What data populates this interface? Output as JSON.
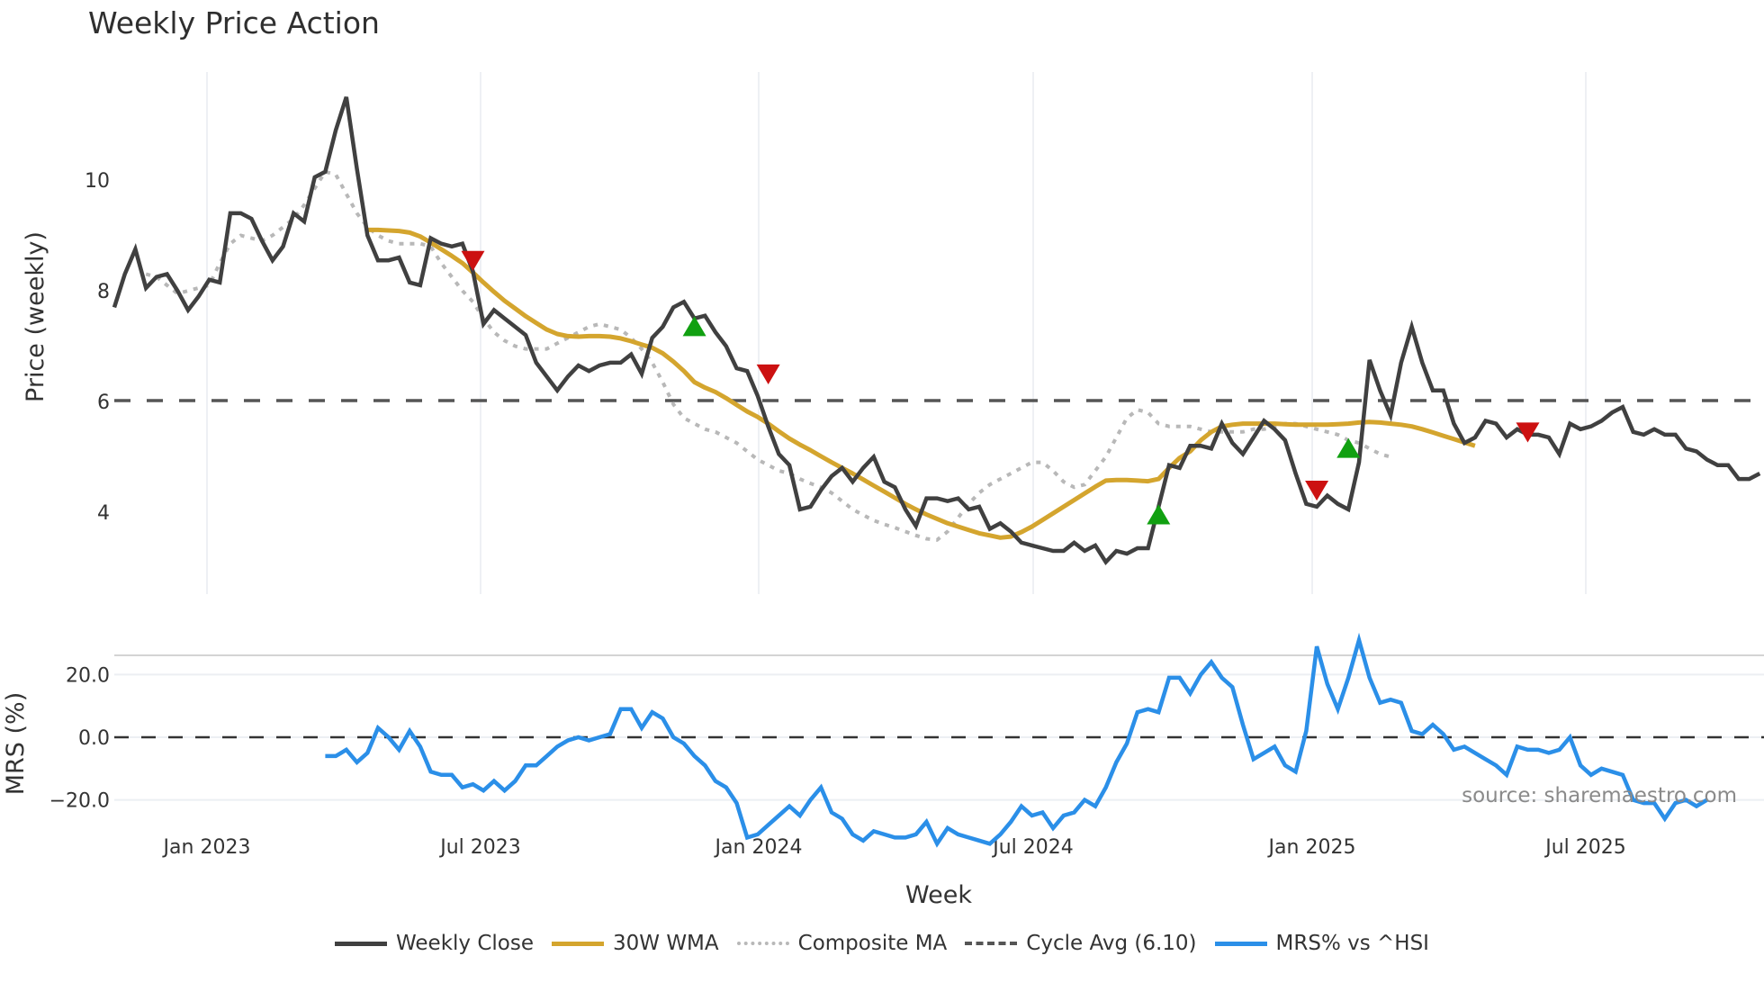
{
  "title": "Weekly Price Action",
  "source_label": "source: sharemaestro.com",
  "legend": [
    {
      "label": "Weekly Close",
      "color": "#404040",
      "style": "solid"
    },
    {
      "label": "30W WMA",
      "color": "#d4a52e",
      "style": "solid"
    },
    {
      "label": "Composite MA",
      "color": "#b8b8b8",
      "style": "dotted"
    },
    {
      "label": "Cycle Avg (6.10)",
      "color": "#555555",
      "style": "dashed"
    },
    {
      "label": "MRS% vs ^HSI",
      "color": "#2b8fe8",
      "style": "solid"
    }
  ],
  "chart_data": [
    {
      "type": "line",
      "title": "Weekly Price Action",
      "xlabel": "Week",
      "ylabel": "Price (weekly)",
      "x_ticks": [
        "Jan 2023",
        "Jul 2023",
        "Jan 2024",
        "Jul 2024",
        "Jan 2025",
        "Jul 2025"
      ],
      "y_ticks": [
        4,
        6,
        8,
        10
      ],
      "ylim": [
        2.6,
        11.8
      ],
      "grid": true,
      "x_start": "Nov 2022",
      "x_end": "Oct 2025",
      "series": [
        {
          "name": "Weekly Close",
          "values": [
            7.7,
            8.3,
            8.75,
            8.05,
            8.25,
            8.3,
            8.0,
            7.65,
            7.9,
            8.2,
            8.15,
            9.4,
            9.4,
            9.3,
            8.9,
            8.55,
            8.8,
            9.4,
            9.25,
            10.05,
            10.15,
            10.9,
            11.5,
            10.2,
            9.0,
            8.55,
            8.55,
            8.6,
            8.15,
            8.1,
            8.95,
            8.85,
            8.8,
            8.85,
            8.35,
            7.4,
            7.65,
            7.5,
            7.35,
            7.2,
            6.7,
            6.45,
            6.2,
            6.45,
            6.65,
            6.55,
            6.65,
            6.7,
            6.7,
            6.85,
            6.5,
            7.15,
            7.35,
            7.7,
            7.8,
            7.5,
            7.55,
            7.25,
            7.0,
            6.6,
            6.55,
            6.1,
            5.55,
            5.05,
            4.85,
            4.05,
            4.1,
            4.4,
            4.65,
            4.8,
            4.55,
            4.8,
            5.0,
            4.55,
            4.45,
            4.05,
            3.75,
            4.25,
            4.25,
            4.2,
            4.25,
            4.05,
            4.1,
            3.7,
            3.8,
            3.65,
            3.45,
            3.4,
            3.35,
            3.3,
            3.3,
            3.45,
            3.3,
            3.4,
            3.1,
            3.3,
            3.25,
            3.35,
            3.35,
            4.1,
            4.85,
            4.8,
            5.2,
            5.2,
            5.15,
            5.6,
            5.25,
            5.05,
            5.35,
            5.65,
            5.5,
            5.3,
            4.7,
            4.15,
            4.1,
            4.3,
            4.15,
            4.05,
            4.9,
            6.75,
            6.2,
            5.75,
            6.7,
            7.35,
            6.7,
            6.2,
            6.2,
            5.6,
            5.25,
            5.35,
            5.65,
            5.6,
            5.35,
            5.5,
            5.4,
            5.4,
            5.35,
            5.05,
            5.6,
            5.5,
            5.55,
            5.65,
            5.8,
            5.9,
            5.45,
            5.4,
            5.5,
            5.4,
            5.4,
            5.15,
            5.1,
            4.95,
            4.85,
            4.85,
            4.6,
            4.6,
            4.7
          ]
        },
        {
          "name": "30W WMA",
          "start_index": 24,
          "values": [
            9.1,
            9.1,
            9.09,
            9.08,
            9.05,
            8.98,
            8.87,
            8.75,
            8.63,
            8.5,
            8.33,
            8.15,
            7.98,
            7.82,
            7.68,
            7.54,
            7.42,
            7.3,
            7.22,
            7.18,
            7.17,
            7.18,
            7.18,
            7.17,
            7.14,
            7.09,
            7.03,
            6.97,
            6.87,
            6.72,
            6.55,
            6.35,
            6.25,
            6.17,
            6.06,
            5.94,
            5.82,
            5.72,
            5.6,
            5.46,
            5.33,
            5.22,
            5.12,
            5.01,
            4.9,
            4.8,
            4.7,
            4.59,
            4.48,
            4.37,
            4.26,
            4.15,
            4.05,
            3.96,
            3.88,
            3.8,
            3.74,
            3.68,
            3.62,
            3.58,
            3.54,
            3.56,
            3.64,
            3.74,
            3.86,
            3.98,
            4.1,
            4.22,
            4.34,
            4.46,
            4.57,
            4.58,
            4.58,
            4.57,
            4.56,
            4.6,
            4.8,
            4.98,
            5.1,
            5.3,
            5.45,
            5.55,
            5.58,
            5.6,
            5.6,
            5.6,
            5.6,
            5.59,
            5.58,
            5.58,
            5.58,
            5.58,
            5.59,
            5.6,
            5.62,
            5.63,
            5.62,
            5.6,
            5.58,
            5.55,
            5.5,
            5.44,
            5.38,
            5.32,
            5.26,
            5.2
          ]
        },
        {
          "name": "Composite MA",
          "start_index": 3,
          "values": [
            8.3,
            8.25,
            8.1,
            7.95,
            8.0,
            8.05,
            8.1,
            8.5,
            8.85,
            9.0,
            8.95,
            8.9,
            9.0,
            9.15,
            9.3,
            9.55,
            9.85,
            10.15,
            10.1,
            9.75,
            9.4,
            9.15,
            9.0,
            8.9,
            8.85,
            8.85,
            8.85,
            8.8,
            8.5,
            8.25,
            8.0,
            7.8,
            7.5,
            7.25,
            7.1,
            7.0,
            6.95,
            6.95,
            6.95,
            7.05,
            7.15,
            7.25,
            7.35,
            7.4,
            7.35,
            7.3,
            7.15,
            6.95,
            6.7,
            6.35,
            5.95,
            5.7,
            5.6,
            5.5,
            5.45,
            5.35,
            5.25,
            5.1,
            4.95,
            4.85,
            4.75,
            4.7,
            4.6,
            4.52,
            4.45,
            4.35,
            4.2,
            4.05,
            3.95,
            3.85,
            3.78,
            3.72,
            3.65,
            3.58,
            3.52,
            3.5,
            3.65,
            3.9,
            4.15,
            4.35,
            4.5,
            4.6,
            4.7,
            4.8,
            4.9,
            4.9,
            4.75,
            4.55,
            4.45,
            4.5,
            4.75,
            5.0,
            5.35,
            5.7,
            5.85,
            5.8,
            5.6,
            5.55,
            5.55,
            5.55,
            5.5,
            5.45,
            5.45,
            5.45,
            5.45,
            5.5,
            5.5,
            5.55,
            5.6,
            5.6,
            5.55,
            5.5,
            5.45,
            5.4,
            5.3,
            5.25,
            5.15,
            5.05,
            5.0
          ]
        },
        {
          "name": "Cycle Avg (6.10)",
          "values": [
            6.1
          ]
        }
      ],
      "markers": [
        {
          "type": "sell",
          "symbol": "triangle-down",
          "color": "#cc1111",
          "index": 34,
          "price": 8.55
        },
        {
          "type": "buy",
          "symbol": "triangle-up",
          "color": "#11a011",
          "index": 55,
          "price": 7.35
        },
        {
          "type": "sell",
          "symbol": "triangle-down",
          "color": "#cc1111",
          "index": 62,
          "price": 6.5
        },
        {
          "type": "buy",
          "symbol": "triangle-up",
          "color": "#11a011",
          "index": 99,
          "price": 3.95
        },
        {
          "type": "sell",
          "symbol": "triangle-down",
          "color": "#cc1111",
          "index": 114,
          "price": 4.4
        },
        {
          "type": "buy",
          "symbol": "triangle-up",
          "color": "#11a011",
          "index": 117,
          "price": 5.15
        },
        {
          "type": "sell",
          "symbol": "triangle-down",
          "color": "#cc1111",
          "index": 134,
          "price": 5.45
        }
      ]
    },
    {
      "type": "line",
      "title": "",
      "xlabel": "Week",
      "ylabel": "MRS (%)",
      "y_ticks": [
        "20.0",
        "0.0",
        "-20.0"
      ],
      "ylim": [
        -35,
        35
      ],
      "zero_line": 0,
      "series": [
        {
          "name": "MRS% vs ^HSI",
          "start_index": 20,
          "values": [
            -6,
            -6,
            -4,
            -8,
            -5,
            3,
            0,
            -4,
            2,
            -3,
            -11,
            -12,
            -12,
            -16,
            -15,
            -17,
            -14,
            -17,
            -14,
            -9,
            -9,
            -6,
            -3,
            -1,
            0,
            -1,
            0,
            1,
            9,
            9,
            3,
            8,
            6,
            0,
            -2,
            -6,
            -9,
            -14,
            -16,
            -21,
            -32,
            -31,
            -28,
            -25,
            -22,
            -25,
            -20,
            -16,
            -24,
            -26,
            -31,
            -33,
            -30,
            -31,
            -32,
            -32,
            -31,
            -27,
            -34,
            -29,
            -31,
            -32,
            -33,
            -34,
            -31,
            -27,
            -22,
            -25,
            -24,
            -29,
            -25,
            -24,
            -20,
            -22,
            -16,
            -8,
            -2,
            8,
            9,
            8,
            19,
            19,
            14,
            20,
            24,
            19,
            16,
            4,
            -7,
            -5,
            -3,
            -9,
            -11,
            2,
            29,
            17,
            9,
            19,
            31,
            19,
            11,
            12,
            11,
            2,
            1,
            4,
            1,
            -4,
            -3,
            -5,
            -7,
            -9,
            -12,
            -3,
            -4,
            -4,
            -5,
            -4,
            0,
            -9,
            -12,
            -10,
            -11,
            -12,
            -20,
            -21,
            -21,
            -26,
            -21,
            -20,
            -22,
            -20
          ]
        }
      ]
    }
  ],
  "axes": {
    "price_y_label": "Price (weekly)",
    "mrs_y_label": "MRS (%)",
    "x_label": "Week",
    "price_ticks": [
      "10",
      "8",
      "6",
      "4"
    ],
    "mrs_ticks": [
      "20.0",
      "0.0",
      "−20.0"
    ],
    "x_ticks": [
      "Jan 2023",
      "Jul 2023",
      "Jan 2024",
      "Jul 2024",
      "Jan 2025",
      "Jul 2025"
    ]
  }
}
